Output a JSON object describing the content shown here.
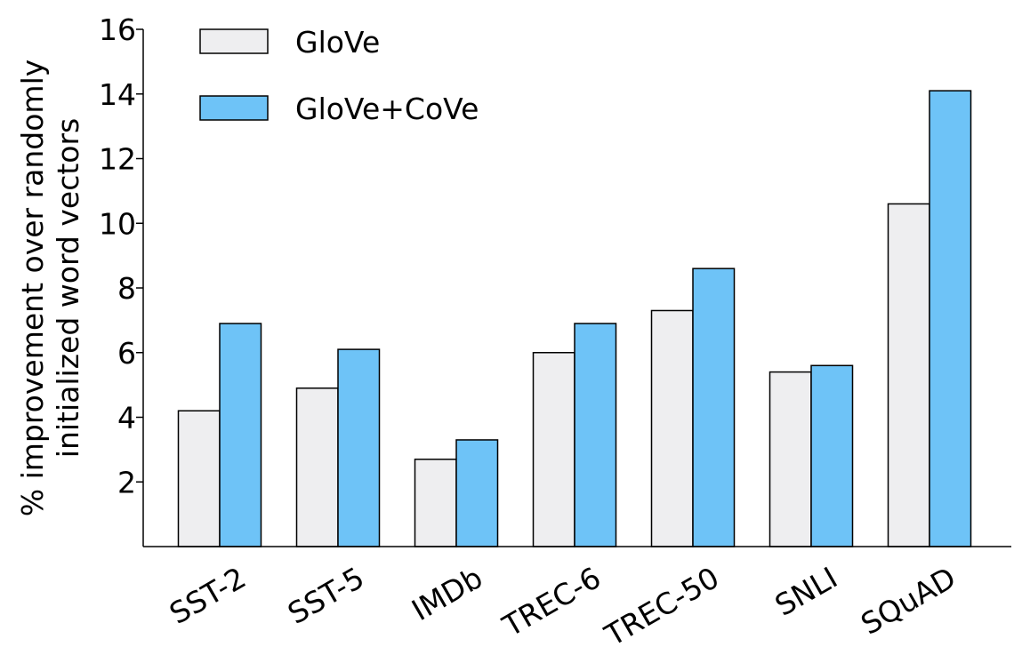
{
  "chart_data": {
    "type": "bar",
    "categories": [
      "SST-2",
      "SST-5",
      "IMDb",
      "TREC-6",
      "TREC-50",
      "SNLI",
      "SQuAD"
    ],
    "series": [
      {
        "name": "GloVe",
        "values": [
          4.2,
          4.9,
          2.7,
          6.0,
          7.3,
          5.4,
          10.6
        ],
        "color": "#eeeef0"
      },
      {
        "name": "GloVe+CoVe",
        "values": [
          6.9,
          6.1,
          3.3,
          6.9,
          8.6,
          5.6,
          14.1
        ],
        "color": "#6ec3f7"
      }
    ],
    "ylabel_lines": [
      "% improvement over randomly",
      "initialized word vectors"
    ],
    "xlabel": "",
    "ylim": [
      0,
      16
    ],
    "yticks": [
      2,
      4,
      6,
      8,
      10,
      12,
      14,
      16
    ],
    "grid": false,
    "legend_position": "top-left"
  }
}
